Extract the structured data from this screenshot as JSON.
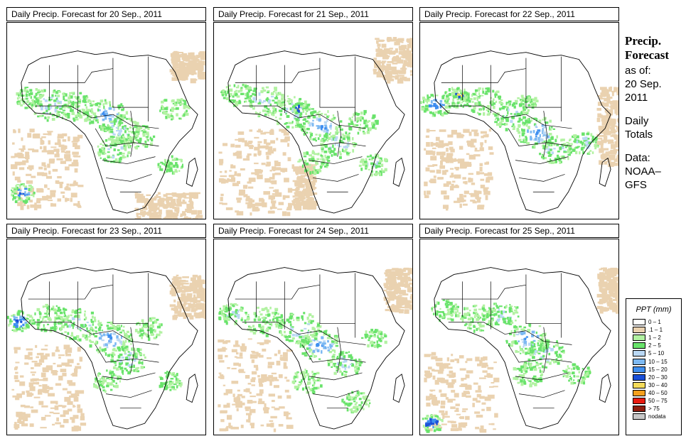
{
  "panels": [
    {
      "title": "Daily Precip. Forecast for  20 Sep., 2011"
    },
    {
      "title": "Daily Precip. Forecast for  21 Sep., 2011"
    },
    {
      "title": "Daily Precip. Forecast for  22 Sep., 2011"
    },
    {
      "title": "Daily Precip. Forecast for  23 Sep., 2011"
    },
    {
      "title": "Daily Precip. Forecast for  24 Sep., 2011"
    },
    {
      "title": "Daily Precip. Forecast for  25 Sep., 2011"
    }
  ],
  "info": {
    "title_line1": "Precip.",
    "title_line2": "Forecast",
    "as_of": "as of:",
    "date_line1": "20 Sep.",
    "date_line2": "2011",
    "totals_line1": "Daily",
    "totals_line2": "Totals",
    "data_line1": "Data:",
    "data_line2": "NOAA–",
    "data_line3": "GFS"
  },
  "legend": {
    "title": "PPT (mm)",
    "items": [
      {
        "label": "0 – 1",
        "color": "#ffffff"
      },
      {
        "label": ".1 – 1",
        "color": "#ead2b0"
      },
      {
        "label": "1 – 2",
        "color": "#b2f2a2"
      },
      {
        "label": "2 – 5",
        "color": "#69e36b"
      },
      {
        "label": "5 – 10",
        "color": "#bad8f4"
      },
      {
        "label": "10 – 15",
        "color": "#7db9f2"
      },
      {
        "label": "15 – 20",
        "color": "#3f8ff0"
      },
      {
        "label": "20 – 30",
        "color": "#1a4fd8"
      },
      {
        "label": "30 – 40",
        "color": "#f5dc5a"
      },
      {
        "label": "40 – 50",
        "color": "#f5a01e"
      },
      {
        "label": "50 – 75",
        "color": "#e81a10"
      },
      {
        "label": "> 75",
        "color": "#8e1e10"
      },
      {
        "label": "nodata",
        "color": "#c8c8c8"
      }
    ]
  }
}
